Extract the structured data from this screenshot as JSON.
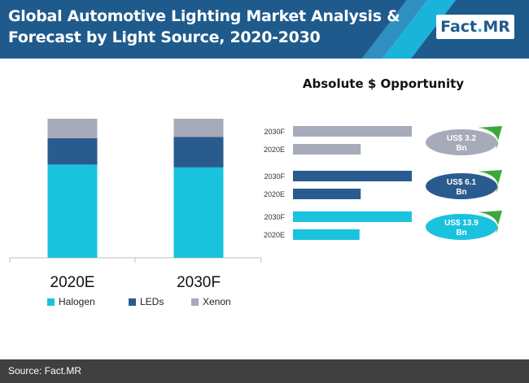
{
  "header": {
    "title_line1": "Global Automotive Lighting Market Analysis &",
    "title_line2": "Forecast by Light Source, 2020-2030",
    "logo_main": "Fact",
    "logo_dot": ".",
    "logo_suffix": "MR"
  },
  "colors": {
    "header_bg": "#1f5a8c",
    "halogen": "#1ac3dd",
    "leds": "#2a5b8e",
    "xenon": "#a7aab9",
    "accent_green": "#3aa83a"
  },
  "chart_data": [
    {
      "type": "bar",
      "stacked": true,
      "categories": [
        "2020E",
        "2030F"
      ],
      "series": [
        {
          "name": "Halogen",
          "values": [
            67,
            65
          ]
        },
        {
          "name": "LEDs",
          "values": [
            19,
            22
          ]
        },
        {
          "name": "Xenon",
          "values": [
            14,
            13
          ]
        }
      ],
      "ylim": [
        0,
        100
      ],
      "legend": "bottom"
    },
    {
      "type": "bar",
      "orientation": "horizontal",
      "title": "Absolute $ Opportunity",
      "groups": [
        {
          "color": "xenon",
          "bars": [
            {
              "label": "2030F",
              "value": 100
            },
            {
              "label": "2020E",
              "value": 57
            }
          ],
          "opportunity": "US$ 3.2",
          "unit": "Bn"
        },
        {
          "color": "leds",
          "bars": [
            {
              "label": "2030F",
              "value": 100
            },
            {
              "label": "2020E",
              "value": 57
            }
          ],
          "opportunity": "US$ 6.1",
          "unit": "Bn"
        },
        {
          "color": "halogen",
          "bars": [
            {
              "label": "2030F",
              "value": 100
            },
            {
              "label": "2020E",
              "value": 56
            }
          ],
          "opportunity": "US$ 13.9",
          "unit": "Bn"
        }
      ]
    }
  ],
  "footer": {
    "source": "Source: Fact.MR"
  }
}
